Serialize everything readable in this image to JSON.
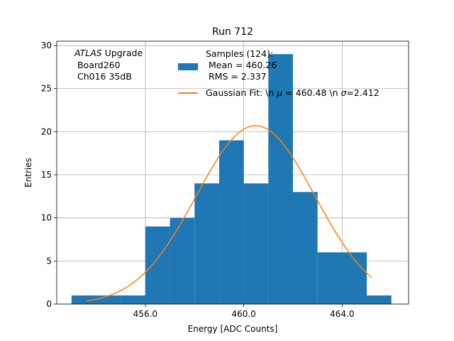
{
  "chart_data": {
    "type": "bar",
    "title": "Run 712",
    "xlabel": "Energy [ADC Counts]",
    "ylabel": "Entries",
    "xlim": [
      452.4,
      466.7
    ],
    "ylim": [
      0,
      30.5
    ],
    "grid": true,
    "xticks": [
      456,
      460,
      464
    ],
    "xtick_labels": [
      "456.0",
      "460.0",
      "464.0"
    ],
    "yticks": [
      0,
      5,
      10,
      15,
      20,
      25,
      30
    ],
    "ytick_labels": [
      "0",
      "5",
      "10",
      "15",
      "20",
      "25",
      "30"
    ],
    "bin_edges": [
      453,
      454,
      455,
      456,
      457,
      458,
      459,
      460,
      461,
      462,
      463,
      464,
      465,
      466
    ],
    "counts": [
      1,
      1,
      1,
      9,
      10,
      14,
      19,
      14,
      29,
      13,
      6,
      6,
      1
    ],
    "bar_color": "#1f77b4",
    "fit": {
      "mu": 460.48,
      "sigma": 2.412,
      "amplitude": 20.7,
      "x_range": [
        453.6,
        465.2
      ],
      "color": "#ff7f0e"
    },
    "annotation": {
      "italic": "ATLAS",
      "line1_rest": " Upgrade",
      "line2": " Board260",
      "line3": " Ch016 35dB"
    },
    "legend": {
      "location": "top-center",
      "hist_label_line1": "Samples (124):",
      "hist_label_line2": " Mean = 460.26",
      "hist_label_line3": " RMS = 2.337",
      "fit_label_prefix": "Gaussian Fit: \\n ",
      "fit_mu_symbol": "μ",
      "fit_mu_value": " = 460.48 \\n ",
      "fit_sigma_symbol": "σ",
      "fit_sigma_value": "=2.412"
    }
  }
}
